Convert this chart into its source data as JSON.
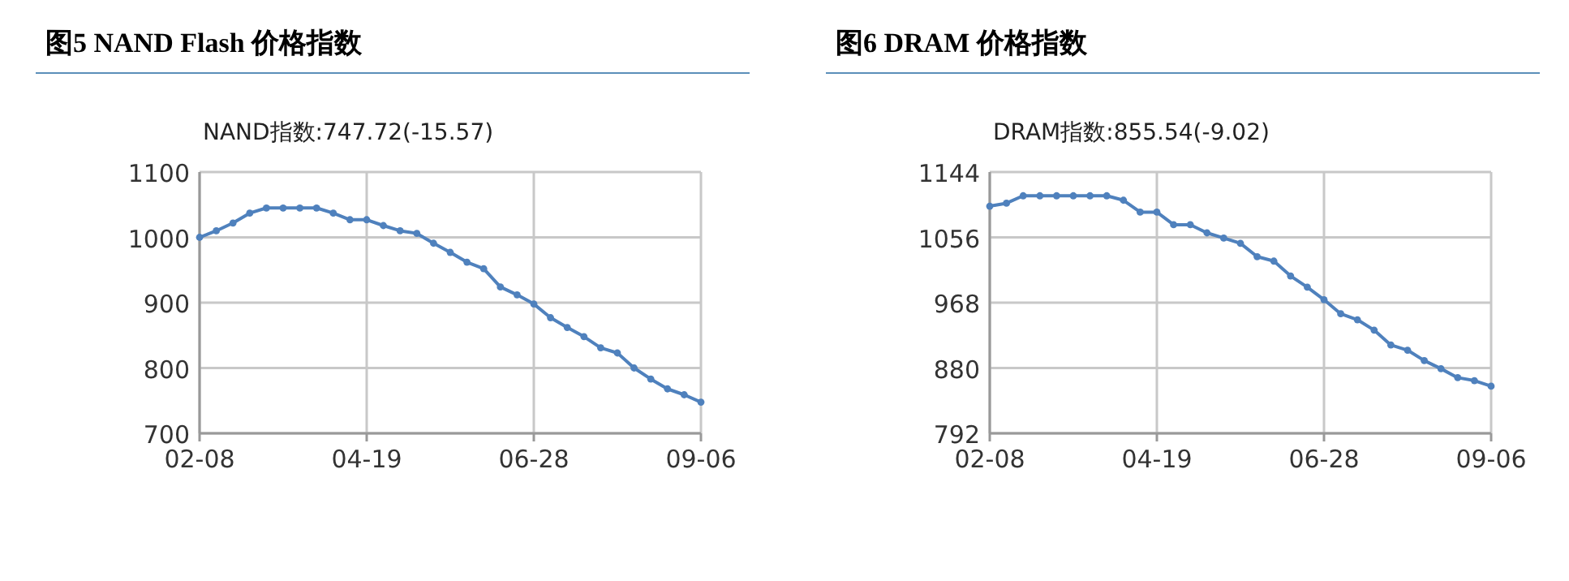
{
  "chart_data": [
    {
      "type": "line",
      "title": "图5  NAND Flash 价格指数",
      "subtitle": "NAND指数:747.72(-15.57)",
      "categories": [
        "02-08",
        null,
        null,
        null,
        null,
        null,
        null,
        null,
        null,
        null,
        "04-19",
        null,
        null,
        null,
        null,
        null,
        null,
        null,
        null,
        null,
        "06-28",
        null,
        null,
        null,
        null,
        null,
        null,
        null,
        null,
        null,
        "09-06"
      ],
      "series": [
        {
          "color": "#4f81bd",
          "values": [
            1000,
            1010,
            1022,
            1037,
            1045,
            1045,
            1045,
            1045,
            1037,
            1027,
            1027,
            1018,
            1010,
            1006,
            991,
            977,
            962,
            952,
            924,
            912,
            898,
            877,
            862,
            848,
            831,
            823,
            800,
            783,
            768,
            759,
            747.72
          ]
        }
      ],
      "ylim": [
        700,
        1100
      ],
      "yticks": [
        700,
        800,
        900,
        1000,
        1100
      ],
      "grid": true,
      "marker": "circle",
      "line_style": "solid"
    },
    {
      "type": "line",
      "title": "图6  DRAM 价格指数",
      "subtitle": "DRAM指数:855.54(-9.02)",
      "categories": [
        "02-08",
        null,
        null,
        null,
        null,
        null,
        null,
        null,
        null,
        null,
        "04-19",
        null,
        null,
        null,
        null,
        null,
        null,
        null,
        null,
        null,
        "06-28",
        null,
        null,
        null,
        null,
        null,
        null,
        null,
        null,
        null,
        "09-06"
      ],
      "series": [
        {
          "color": "#4f81bd",
          "values": [
            1098,
            1102,
            1112,
            1112,
            1112,
            1112,
            1112,
            1112,
            1106,
            1090,
            1090,
            1073,
            1073,
            1062,
            1055,
            1048,
            1030,
            1024,
            1004,
            989,
            972,
            953,
            945,
            931,
            911,
            904,
            890,
            879,
            867,
            863,
            855.54
          ]
        }
      ],
      "ylim": [
        792,
        1144
      ],
      "yticks": [
        792,
        880,
        968,
        1056,
        1144
      ],
      "grid": true,
      "marker": "circle",
      "line_style": "solid"
    }
  ]
}
